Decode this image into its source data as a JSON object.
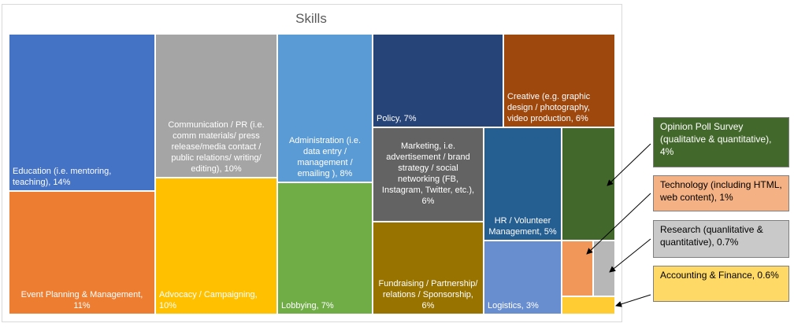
{
  "chart_data": {
    "type": "treemap",
    "title": "Skills",
    "items": [
      {
        "label": "Education (i.e. mentoring, teaching), 14%",
        "category": "Education (i.e. mentoring, teaching)",
        "value": 14,
        "color": "#4472c4"
      },
      {
        "label": "Event Planning & Management, 11%",
        "category": "Event Planning & Management",
        "value": 11,
        "color": "#ed7d31"
      },
      {
        "label": "Communication / PR (i.e. comm materials/ press release/media contact / public relations/ writing/ editing), 10%",
        "category": "Communication / PR (i.e. comm materials/ press release/media contact / public relations/ writing/ editing)",
        "value": 10,
        "color": "#a5a5a5"
      },
      {
        "label": "Advocacy / Campaigning, 10%",
        "category": "Advocacy / Campaigning",
        "value": 10,
        "color": "#ffc000"
      },
      {
        "label": "Administration (i.e. data entry / management / emailing ), 8%",
        "category": "Administration (i.e. data entry / management / emailing )",
        "value": 8,
        "color": "#5b9bd5"
      },
      {
        "label": "Lobbying, 7%",
        "category": "Lobbying",
        "value": 7,
        "color": "#70ad47"
      },
      {
        "label": "Policy, 7%",
        "category": "Policy",
        "value": 7,
        "color": "#264478"
      },
      {
        "label": "Creative (e.g. graphic design / photography, video production, 6%",
        "category": "Creative (e.g. graphic design / photography, video production",
        "value": 6,
        "color": "#9e480e"
      },
      {
        "label": "Marketing, i.e. advertisement / brand strategy / social networking (FB, Instagram, Twitter, etc.), 6%",
        "category": "Marketing, i.e. advertisement / brand strategy / social networking (FB, Instagram, Twitter, etc.)",
        "value": 6,
        "color": "#636363"
      },
      {
        "label": "Fundraising / Partnership/ relations / Sponsorship, 6%",
        "category": "Fundraising / Partnership/ relations / Sponsorship",
        "value": 6,
        "color": "#997300"
      },
      {
        "label": "HR / Volunteer Management, 5%",
        "category": "HR / Volunteer Management",
        "value": 5,
        "color": "#255e91"
      },
      {
        "label": "Logistics, 3%",
        "category": "Logistics",
        "value": 3,
        "color": "#698ed0"
      },
      {
        "label": "",
        "category": "Opinion Poll Survey (qualitative & quantitative)",
        "value": 4,
        "color": "#43682b"
      },
      {
        "label": "",
        "category": "Technology (including HTML, web content)",
        "value": 1,
        "color": "#f1975a"
      },
      {
        "label": "",
        "category": "Research (quanlitative & quantitative)",
        "value": 0.7,
        "color": "#b7b7b7"
      },
      {
        "label": "",
        "category": "Accounting & Finance",
        "value": 0.6,
        "color": "#ffcd33"
      }
    ],
    "callouts": [
      {
        "text": "Opinion Poll Survey (qualitative & quantitative), 4%",
        "bg": "#43682b",
        "fg": "#ffffff"
      },
      {
        "text": "Technology (including HTML, web content), 1%",
        "bg": "#f4b183",
        "fg": "#000000"
      },
      {
        "text": "Research (quanlitative & quantitative), 0.7%",
        "bg": "#c9c9c9",
        "fg": "#000000"
      },
      {
        "text": "Accounting & Finance, 0.6%",
        "bg": "#ffd966",
        "fg": "#000000"
      }
    ]
  }
}
